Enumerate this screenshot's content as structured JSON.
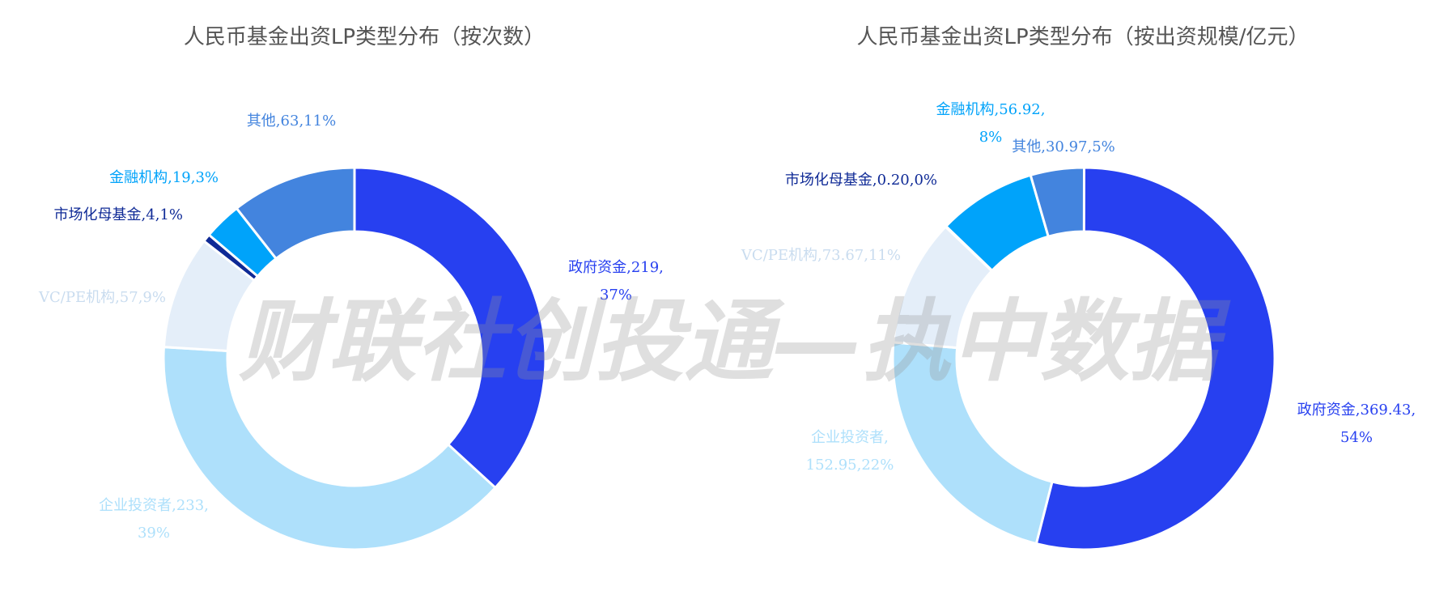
{
  "watermark": "财联社创投通—执中数据",
  "colors": {
    "政府资金": "#2740F0",
    "企业投资者": "#AEE0FB",
    "VC/PE机构": "#E4EEF9",
    "市场化母基金": "#0F2A96",
    "金融机构": "#00A3FA",
    "其他": "#4384DE"
  },
  "chart_data": [
    {
      "type": "pie",
      "title": "人民币基金出资LP类型分布（按次数）",
      "slices": [
        {
          "name": "政府资金",
          "value": 219,
          "percent": "37%",
          "label_lines": [
            "政府资金,219,",
            "37%"
          ]
        },
        {
          "name": "企业投资者",
          "value": 233,
          "percent": "39%",
          "label_lines": [
            "企业投资者,233,",
            "39%"
          ]
        },
        {
          "name": "VC/PE机构",
          "value": 57,
          "percent": "9%",
          "label_lines": [
            "VC/PE机构,57,9%"
          ]
        },
        {
          "name": "市场化母基金",
          "value": 4,
          "percent": "1%",
          "label_lines": [
            "市场化母基金,4,1%"
          ]
        },
        {
          "name": "金融机构",
          "value": 19,
          "percent": "3%",
          "label_lines": [
            "金融机构,19,3%"
          ]
        },
        {
          "name": "其他",
          "value": 63,
          "percent": "11%",
          "label_lines": [
            "其他,63,11%"
          ]
        }
      ]
    },
    {
      "type": "pie",
      "title": "人民币基金出资LP类型分布（按出资规模/亿元）",
      "slices": [
        {
          "name": "政府资金",
          "value": 369.43,
          "percent": "54%",
          "label_lines": [
            "政府资金,369.43,",
            "54%"
          ]
        },
        {
          "name": "企业投资者",
          "value": 152.95,
          "percent": "22%",
          "label_lines": [
            "企业投资者,",
            "152.95,22%"
          ]
        },
        {
          "name": "VC/PE机构",
          "value": 73.67,
          "percent": "11%",
          "label_lines": [
            "VC/PE机构,73.67,11%"
          ]
        },
        {
          "name": "市场化母基金",
          "value": 0.2,
          "percent": "0%",
          "label_lines": [
            "市场化母基金,0.20,0%"
          ]
        },
        {
          "name": "金融机构",
          "value": 56.92,
          "percent": "8%",
          "label_lines": [
            "金融机构,56.92,",
            "8%"
          ]
        },
        {
          "name": "其他",
          "value": 30.97,
          "percent": "5%",
          "label_lines": [
            "其他,30.97,5%"
          ]
        }
      ]
    }
  ]
}
